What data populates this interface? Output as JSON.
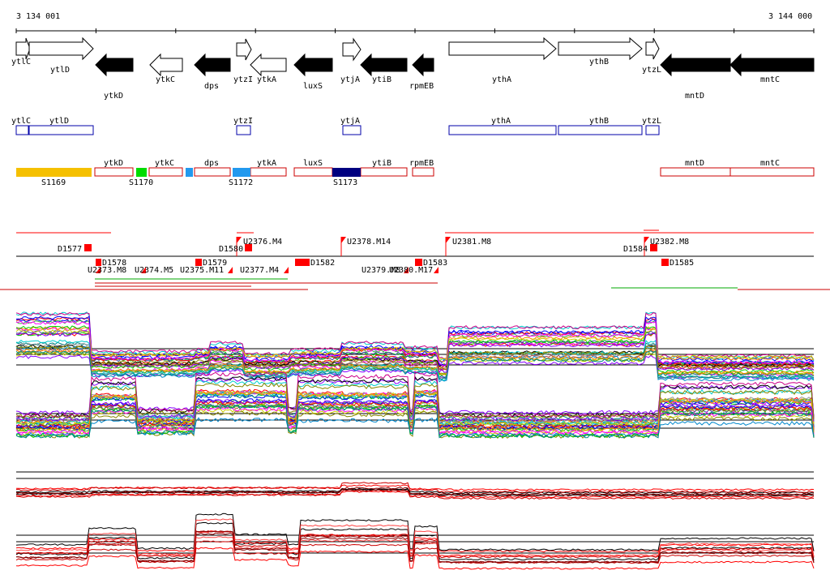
{
  "coords": {
    "start": "3 134 001",
    "end": "3 144 000"
  },
  "colors": {
    "gene_fill_forward": "#ffffff",
    "gene_fill_reverse": "#000000",
    "annotation_box": "#0000aa",
    "transcript_box": "#cc0000",
    "marker_red": "#ff0000",
    "track_line": "#000000",
    "green_bar": "#00aa00"
  },
  "genes": [
    {
      "name": "ytlC",
      "strand": "+"
    },
    {
      "name": "ytlD",
      "strand": "+"
    },
    {
      "name": "ytkD",
      "strand": "-"
    },
    {
      "name": "ytkC",
      "strand": "-"
    },
    {
      "name": "dps",
      "strand": "-"
    },
    {
      "name": "ytzI",
      "strand": "+"
    },
    {
      "name": "ytkA",
      "strand": "-"
    },
    {
      "name": "luxS",
      "strand": "-"
    },
    {
      "name": "ytjA",
      "strand": "+"
    },
    {
      "name": "ytiB",
      "strand": "-"
    },
    {
      "name": "rpmEB",
      "strand": "-"
    },
    {
      "name": "ythA",
      "strand": "+"
    },
    {
      "name": "ythB",
      "strand": "+"
    },
    {
      "name": "ytzL",
      "strand": "+"
    },
    {
      "name": "mntD",
      "strand": "-"
    },
    {
      "name": "mntC",
      "strand": "-"
    }
  ],
  "annotations": [
    "ytlC",
    "ytlD",
    "ytzI",
    "ytjA",
    "ythA",
    "ythB",
    "ytzL"
  ],
  "transcripts": [
    "ytkD",
    "ytkC",
    "dps",
    "ytkA",
    "luxS",
    "ytiB",
    "rpmEB",
    "mntD",
    "mntC"
  ],
  "segments": [
    {
      "label": "S1169",
      "color": "#f5c000"
    },
    {
      "label": "S1170",
      "color": "#00dd00"
    },
    {
      "label": "S1172",
      "color": "#2299ee"
    },
    {
      "label": "S1173",
      "color": "#000080"
    }
  ],
  "markers": {
    "top": [
      "U2376.M4",
      "U2378.M14",
      "U2381.M8",
      "U2382.M8"
    ],
    "left": [
      "D1577",
      "D1580",
      "D1584"
    ],
    "bottom": [
      "U2373.M8",
      "U2374.M5",
      "U2375.M11",
      "U2377.M4",
      "U2379.M8",
      "U2380.M17",
      "D1578",
      "D1579",
      "D1582",
      "D1583",
      "D1585"
    ]
  }
}
